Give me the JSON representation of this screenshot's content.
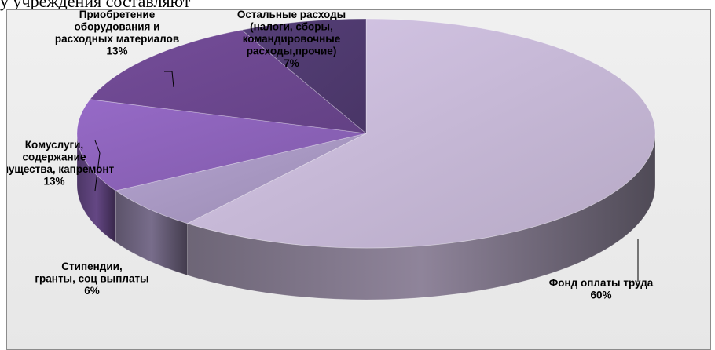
{
  "top_caption": "у учреждения составляют",
  "chart_data": {
    "type": "pie",
    "title": "",
    "style": "3d-exploded-none",
    "slices": [
      {
        "label": "Фонд оплаты труда",
        "percent": 60,
        "percent_label": "60%",
        "color": "#c6b8d6"
      },
      {
        "label": "Стипендии, гранты, соц выплаты",
        "percent": 6,
        "percent_label": "6%",
        "color": "#a797c1"
      },
      {
        "label": "Комуслуги, содержание имущества, капремонт",
        "percent": 13,
        "percent_label": "13%",
        "color": "#8b62b8"
      },
      {
        "label": "Приобретение оборудования и расходных материалов",
        "percent": 13,
        "percent_label": "13%",
        "color": "#6c478f"
      },
      {
        "label": "Остальные расходы (налоги, сборы, командировочные расходы,прочие)",
        "percent": 7,
        "percent_label": "7%",
        "color": "#4f3a6f"
      }
    ]
  }
}
